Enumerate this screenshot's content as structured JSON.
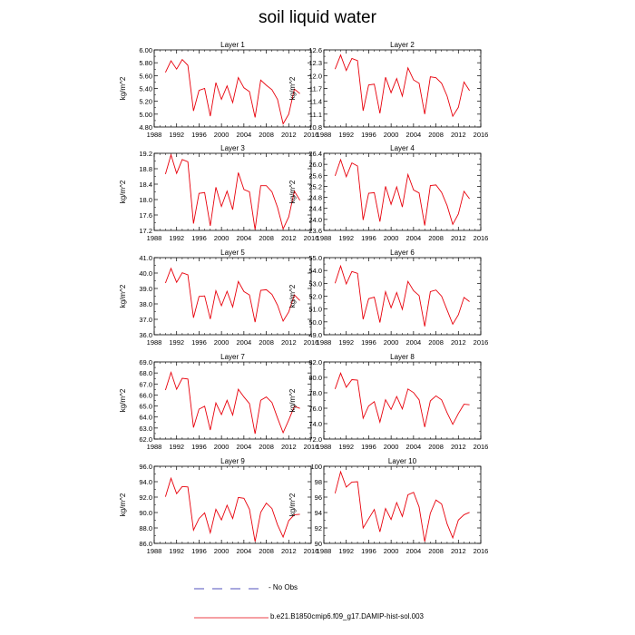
{
  "title": "soil liquid water",
  "legend": {
    "no_obs": "No Obs",
    "run": "b.e21.B1850cmip6.f09_g17.DAMIP-hist-sol.003",
    "run_color": "#e8000b",
    "no_obs_color": "#1a1aa8"
  },
  "chart_data": [
    {
      "type": "line",
      "title": "Layer 1",
      "ylabel": "kg/m^2",
      "xlim": [
        1988,
        2016
      ],
      "ylim": [
        4.8,
        6.0
      ],
      "xticks": [
        "1988",
        "1992",
        "1996",
        "2000",
        "2004",
        "2008",
        "2012",
        "2016"
      ],
      "yticks": [
        "4.80",
        "5.00",
        "5.20",
        "5.40",
        "5.60",
        "5.80",
        "6.00"
      ],
      "x": [
        1990,
        1991,
        1992,
        1993,
        1994,
        1995,
        1996,
        1997,
        1998,
        1999,
        2000,
        2001,
        2002,
        2003,
        2004,
        2005,
        2006,
        2007,
        2008,
        2009,
        2010,
        2011,
        2012,
        2013,
        2014
      ],
      "series": [
        {
          "values": [
            5.65,
            5.83,
            5.7,
            5.85,
            5.76,
            5.05,
            5.37,
            5.4,
            4.97,
            5.49,
            5.23,
            5.44,
            5.18,
            5.57,
            5.41,
            5.35,
            4.95,
            5.53,
            5.45,
            5.38,
            5.23,
            4.85,
            5.0,
            5.39,
            5.32
          ]
        }
      ]
    },
    {
      "type": "line",
      "title": "Layer 2",
      "ylabel": "kg/m^2",
      "xlim": [
        1988,
        2016
      ],
      "ylim": [
        10.8,
        12.6
      ],
      "xticks": [
        "1988",
        "1992",
        "1996",
        "2000",
        "2004",
        "2008",
        "2012",
        "2016"
      ],
      "yticks": [
        "10.8",
        "11.1",
        "11.4",
        "11.7",
        "12.0",
        "12.3",
        "12.6"
      ],
      "x": [
        1990,
        1991,
        1992,
        1993,
        1994,
        1995,
        1996,
        1997,
        1998,
        1999,
        2000,
        2001,
        2002,
        2003,
        2004,
        2005,
        2006,
        2007,
        2008,
        2009,
        2010,
        2011,
        2012,
        2013,
        2014
      ],
      "series": [
        {
          "values": [
            12.15,
            12.48,
            12.12,
            12.4,
            12.35,
            11.18,
            11.78,
            11.8,
            11.12,
            11.96,
            11.6,
            11.93,
            11.52,
            12.18,
            11.9,
            11.82,
            11.1,
            11.97,
            11.95,
            11.82,
            11.52,
            11.05,
            11.26,
            11.85,
            11.65
          ]
        }
      ]
    },
    {
      "type": "line",
      "title": "Layer 3",
      "ylabel": "kg/m^2",
      "xlim": [
        1988,
        2016
      ],
      "ylim": [
        17.2,
        19.2
      ],
      "xticks": [
        "1988",
        "1992",
        "1996",
        "2000",
        "2004",
        "2008",
        "2012",
        "2016"
      ],
      "yticks": [
        "17.2",
        "17.6",
        "18.0",
        "18.4",
        "18.8",
        "19.2"
      ],
      "x": [
        1990,
        1991,
        1992,
        1993,
        1994,
        1995,
        1996,
        1997,
        1998,
        1999,
        2000,
        2001,
        2002,
        2003,
        2004,
        2005,
        2006,
        2007,
        2008,
        2009,
        2010,
        2011,
        2012,
        2013,
        2014
      ],
      "series": [
        {
          "values": [
            18.66,
            19.16,
            18.68,
            19.04,
            18.98,
            17.38,
            18.16,
            18.18,
            17.32,
            18.32,
            17.82,
            18.22,
            17.74,
            18.7,
            18.26,
            18.2,
            17.22,
            18.36,
            18.36,
            18.2,
            17.8,
            17.24,
            17.55,
            18.22,
            17.98
          ]
        }
      ]
    },
    {
      "type": "line",
      "title": "Layer 4",
      "ylabel": "kg/m^2",
      "xlim": [
        1988,
        2016
      ],
      "ylim": [
        23.6,
        26.4
      ],
      "xticks": [
        "1988",
        "1992",
        "1996",
        "2000",
        "2004",
        "2008",
        "2012",
        "2016"
      ],
      "yticks": [
        "23.6",
        "24.0",
        "24.4",
        "24.8",
        "25.2",
        "25.6",
        "26.0",
        "26.4"
      ],
      "x": [
        1990,
        1991,
        1992,
        1993,
        1994,
        1995,
        1996,
        1997,
        1998,
        1999,
        2000,
        2001,
        2002,
        2003,
        2004,
        2005,
        2006,
        2007,
        2008,
        2009,
        2010,
        2011,
        2012,
        2013,
        2014
      ],
      "series": [
        {
          "values": [
            25.58,
            26.17,
            25.55,
            26.05,
            25.94,
            23.98,
            24.95,
            24.97,
            23.92,
            25.2,
            24.55,
            25.18,
            24.45,
            25.63,
            25.07,
            24.96,
            23.78,
            25.23,
            25.25,
            24.98,
            24.5,
            23.82,
            24.2,
            25.02,
            24.75
          ]
        }
      ]
    },
    {
      "type": "line",
      "title": "Layer 5",
      "ylabel": "kg/m^2",
      "xlim": [
        1988,
        2016
      ],
      "ylim": [
        36.0,
        41.0
      ],
      "xticks": [
        "1988",
        "1992",
        "1996",
        "2000",
        "2004",
        "2008",
        "2012",
        "2016"
      ],
      "yticks": [
        "36.0",
        "37.0",
        "38.0",
        "39.0",
        "40.0",
        "41.0"
      ],
      "x": [
        1990,
        1991,
        1992,
        1993,
        1994,
        1995,
        1996,
        1997,
        1998,
        1999,
        2000,
        2001,
        2002,
        2003,
        2004,
        2005,
        2006,
        2007,
        2008,
        2009,
        2010,
        2011,
        2012,
        2013,
        2014
      ],
      "series": [
        {
          "values": [
            39.35,
            40.3,
            39.4,
            40.02,
            39.88,
            37.1,
            38.48,
            38.52,
            37.02,
            38.85,
            37.88,
            38.82,
            37.8,
            39.45,
            38.8,
            38.58,
            36.82,
            38.88,
            38.92,
            38.62,
            37.92,
            36.88,
            37.48,
            38.58,
            38.22
          ]
        }
      ]
    },
    {
      "type": "line",
      "title": "Layer 6",
      "ylabel": "kg/m^2",
      "xlim": [
        1988,
        2016
      ],
      "ylim": [
        49.0,
        55.0
      ],
      "xticks": [
        "1988",
        "1992",
        "1996",
        "2000",
        "2004",
        "2008",
        "2012",
        "2016"
      ],
      "yticks": [
        "49.0",
        "50.0",
        "51.0",
        "52.0",
        "53.0",
        "54.0",
        "55.0"
      ],
      "x": [
        1990,
        1991,
        1992,
        1993,
        1994,
        1995,
        1996,
        1997,
        1998,
        1999,
        2000,
        2001,
        2002,
        2003,
        2004,
        2005,
        2006,
        2007,
        2008,
        2009,
        2010,
        2011,
        2012,
        2013,
        2014
      ],
      "series": [
        {
          "values": [
            53.0,
            54.35,
            52.95,
            53.92,
            53.78,
            50.2,
            51.8,
            51.92,
            49.95,
            52.35,
            51.1,
            52.28,
            50.98,
            53.15,
            52.42,
            52.05,
            49.65,
            52.35,
            52.48,
            52.0,
            50.92,
            49.82,
            50.55,
            51.9,
            51.58
          ]
        }
      ]
    },
    {
      "type": "line",
      "title": "Layer 7",
      "ylabel": "kg/m^2",
      "xlim": [
        1988,
        2016
      ],
      "ylim": [
        62.0,
        69.0
      ],
      "xticks": [
        "1988",
        "1992",
        "1996",
        "2000",
        "2004",
        "2008",
        "2012",
        "2016"
      ],
      "yticks": [
        "62.0",
        "63.0",
        "64.0",
        "65.0",
        "66.0",
        "67.0",
        "68.0",
        "69.0"
      ],
      "x": [
        1990,
        1991,
        1992,
        1993,
        1994,
        1995,
        1996,
        1997,
        1998,
        1999,
        2000,
        2001,
        2002,
        2003,
        2004,
        2005,
        2006,
        2007,
        2008,
        2009,
        2010,
        2011,
        2012,
        2013,
        2014
      ],
      "series": [
        {
          "values": [
            66.45,
            68.05,
            66.52,
            67.52,
            67.45,
            63.05,
            64.72,
            64.98,
            62.82,
            65.28,
            64.22,
            65.52,
            64.18,
            66.52,
            65.82,
            65.22,
            62.48,
            65.52,
            65.82,
            65.32,
            63.92,
            62.58,
            63.72,
            64.98,
            64.78
          ]
        }
      ]
    },
    {
      "type": "line",
      "title": "Layer 8",
      "ylabel": "kg/m^2",
      "xlim": [
        1988,
        2016
      ],
      "ylim": [
        72.0,
        82.0
      ],
      "xticks": [
        "1988",
        "1992",
        "1996",
        "2000",
        "2004",
        "2008",
        "2012",
        "2016"
      ],
      "yticks": [
        "72.0",
        "74.0",
        "76.0",
        "78.0",
        "80.0",
        "82.0"
      ],
      "x": [
        1990,
        1991,
        1992,
        1993,
        1994,
        1995,
        1996,
        1997,
        1998,
        1999,
        2000,
        2001,
        2002,
        2003,
        2004,
        2005,
        2006,
        2007,
        2008,
        2009,
        2010,
        2011,
        2012,
        2013,
        2014
      ],
      "series": [
        {
          "values": [
            78.5,
            80.55,
            78.72,
            79.7,
            79.65,
            74.7,
            76.3,
            76.85,
            74.2,
            77.1,
            75.85,
            77.52,
            75.9,
            78.5,
            78.02,
            77.1,
            73.55,
            76.95,
            77.6,
            77.08,
            75.4,
            73.9,
            75.32,
            76.52,
            76.45
          ]
        }
      ]
    },
    {
      "type": "line",
      "title": "Layer 9",
      "ylabel": "kg/m^2",
      "xlim": [
        1988,
        2016
      ],
      "ylim": [
        86.0,
        96.0
      ],
      "xticks": [
        "1988",
        "1992",
        "1996",
        "2000",
        "2004",
        "2008",
        "2012",
        "2016"
      ],
      "yticks": [
        "86.0",
        "88.0",
        "90.0",
        "92.0",
        "94.0",
        "96.0"
      ],
      "x": [
        1990,
        1991,
        1992,
        1993,
        1994,
        1995,
        1996,
        1997,
        1998,
        1999,
        2000,
        2001,
        2002,
        2003,
        2004,
        2005,
        2006,
        2007,
        2008,
        2009,
        2010,
        2011,
        2012,
        2013,
        2014
      ],
      "series": [
        {
          "values": [
            92.05,
            94.45,
            92.45,
            93.38,
            93.32,
            87.72,
            89.22,
            89.95,
            87.38,
            90.42,
            89.05,
            90.95,
            89.22,
            91.95,
            91.85,
            90.42,
            86.22,
            90.02,
            91.22,
            90.52,
            88.42,
            86.82,
            88.95,
            89.72,
            89.78
          ]
        }
      ]
    },
    {
      "type": "line",
      "title": "Layer 10",
      "ylabel": "kg/m^2",
      "xlim": [
        1988,
        2016
      ],
      "ylim": [
        90,
        100
      ],
      "xticks": [
        "1988",
        "1992",
        "1996",
        "2000",
        "2004",
        "2008",
        "2012",
        "2016"
      ],
      "yticks": [
        "90",
        "92",
        "94",
        "96",
        "98",
        "100"
      ],
      "x": [
        1990,
        1991,
        1992,
        1993,
        1994,
        1995,
        1996,
        1997,
        1998,
        1999,
        2000,
        2001,
        2002,
        2003,
        2004,
        2005,
        2006,
        2007,
        2008,
        2009,
        2010,
        2011,
        2012,
        2013,
        2014
      ],
      "series": [
        {
          "values": [
            96.5,
            99.3,
            97.3,
            97.95,
            98.0,
            92.0,
            93.2,
            94.4,
            91.5,
            94.52,
            93.1,
            95.3,
            93.5,
            96.3,
            96.62,
            94.72,
            90.22,
            93.92,
            95.62,
            95.12,
            92.52,
            90.72,
            93.02,
            93.72,
            94.02
          ]
        }
      ]
    }
  ]
}
